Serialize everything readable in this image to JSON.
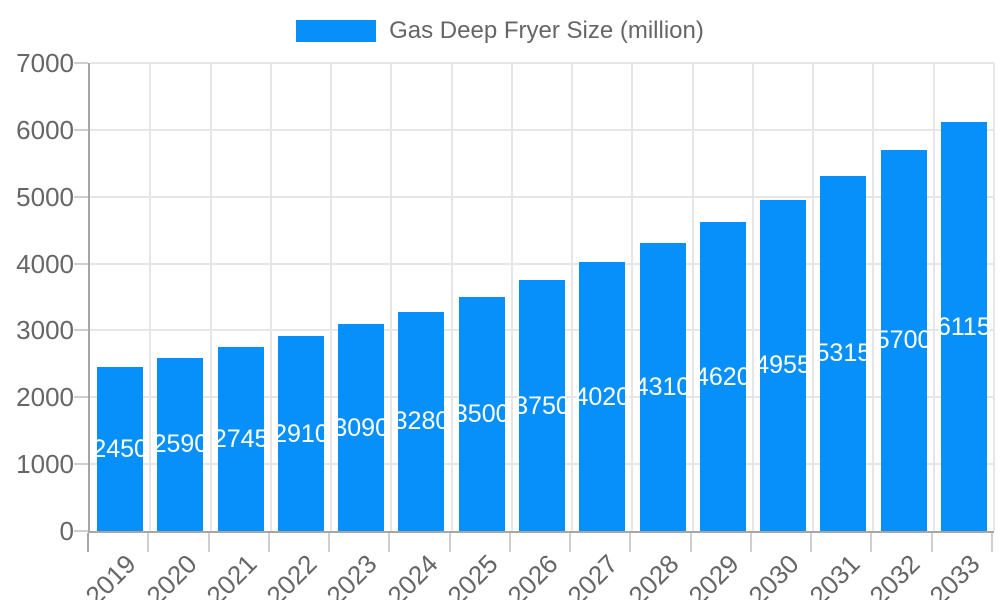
{
  "chart_data": {
    "type": "bar",
    "title": "",
    "legend_label": "Gas Deep Fryer Size (million)",
    "legend_position": "top",
    "categories": [
      "2019",
      "2020",
      "2021",
      "2022",
      "2023",
      "2024",
      "2025",
      "2026",
      "2027",
      "2028",
      "2029",
      "2030",
      "2031",
      "2032",
      "2033"
    ],
    "values": [
      2450,
      2590,
      2745,
      2910,
      3090,
      3280,
      3500,
      3750,
      4020,
      4310,
      4620,
      4955,
      5315,
      5700,
      6115
    ],
    "bar_value_labels_shown": true,
    "xlabel": "",
    "ylabel": "",
    "ylim": [
      0,
      7000
    ],
    "yticks": [
      0,
      1000,
      2000,
      3000,
      4000,
      5000,
      6000,
      7000
    ],
    "grid": true,
    "colors": {
      "bar": "#0890fa",
      "grid": "#e6e6e6",
      "tick": "#cfcfcf",
      "axis": "#a6a6a6",
      "text": "#666666",
      "bar_label_text": "#ffffff",
      "background": "#ffffff"
    }
  }
}
